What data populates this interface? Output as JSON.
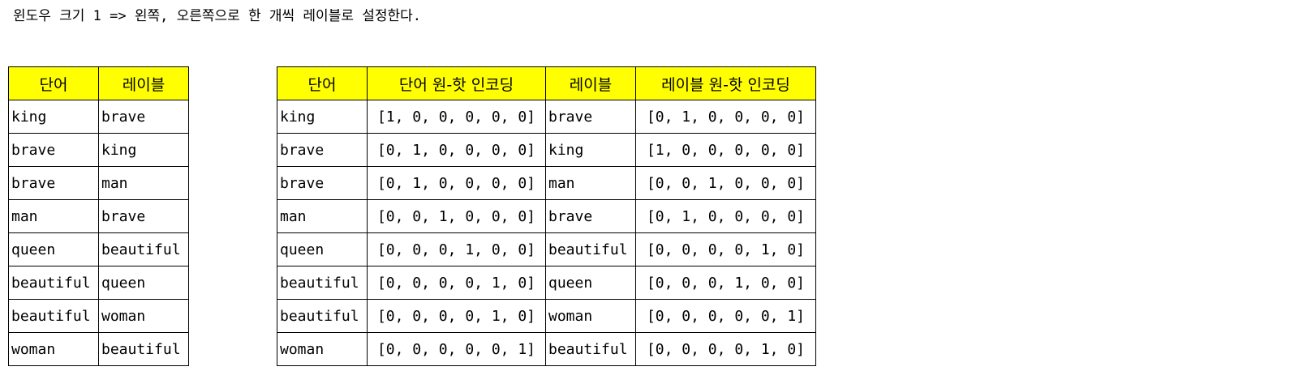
{
  "heading": "윈도우 크기 1 => 왼쪽, 오른쪽으로 한 개씩 레이블로 설정한다.",
  "left_table": {
    "headers": [
      "단어",
      "레이블"
    ],
    "rows": [
      [
        "king",
        "brave"
      ],
      [
        "brave",
        "king"
      ],
      [
        "brave",
        "man"
      ],
      [
        "man",
        "brave"
      ],
      [
        "queen",
        "beautiful"
      ],
      [
        "beautiful",
        "queen"
      ],
      [
        "beautiful",
        "woman"
      ],
      [
        "woman",
        "beautiful"
      ]
    ]
  },
  "right_table": {
    "headers": [
      "단어",
      "단어 원-핫 인코딩",
      "레이블",
      "레이블 원-핫 인코딩"
    ],
    "rows": [
      [
        "king",
        "[1, 0, 0, 0, 0, 0]",
        "brave",
        "[0, 1, 0, 0, 0, 0]"
      ],
      [
        "brave",
        "[0, 1, 0, 0, 0, 0]",
        "king",
        "[1, 0, 0, 0, 0, 0]"
      ],
      [
        "brave",
        "[0, 1, 0, 0, 0, 0]",
        "man",
        "[0, 0, 1, 0, 0, 0]"
      ],
      [
        "man",
        "[0, 0, 1, 0, 0, 0]",
        "brave",
        "[0, 1, 0, 0, 0, 0]"
      ],
      [
        "queen",
        "[0, 0, 0, 1, 0, 0]",
        "beautiful",
        "[0, 0, 0, 0, 1, 0]"
      ],
      [
        "beautiful",
        "[0, 0, 0, 0, 1, 0]",
        "queen",
        "[0, 0, 0, 1, 0, 0]"
      ],
      [
        "beautiful",
        "[0, 0, 0, 0, 1, 0]",
        "woman",
        "[0, 0, 0, 0, 0, 1]"
      ],
      [
        "woman",
        "[0, 0, 0, 0, 0, 1]",
        "beautiful",
        "[0, 0, 0, 0, 1, 0]"
      ]
    ]
  },
  "colors": {
    "header_background": "#ffff00",
    "border": "#000000"
  }
}
